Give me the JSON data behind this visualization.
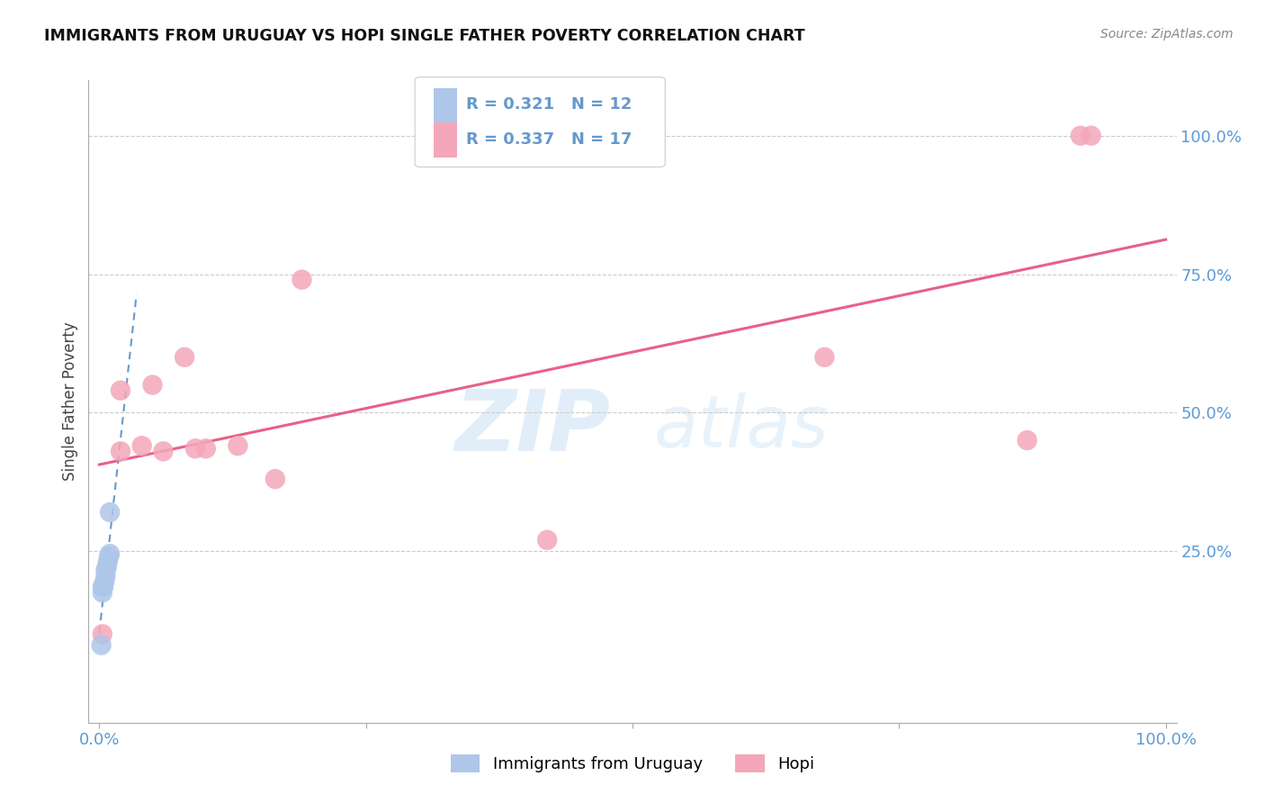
{
  "title": "IMMIGRANTS FROM URUGUAY VS HOPI SINGLE FATHER POVERTY CORRELATION CHART",
  "source": "Source: ZipAtlas.com",
  "ylabel": "Single Father Poverty",
  "legend_label1": "Immigrants from Uruguay",
  "legend_label2": "Hopi",
  "R1": 0.321,
  "N1": 12,
  "R2": 0.337,
  "N2": 17,
  "watermark_zip": "ZIP",
  "watermark_atlas": "atlas",
  "uruguay_color": "#aec6e8",
  "hopi_color": "#f4a7b9",
  "trendline1_color": "#6699cc",
  "trendline2_color": "#e8608a",
  "background_color": "#ffffff",
  "grid_color": "#cccccc",
  "ytick_color": "#5b9bd5",
  "xtick_color": "#5b9bd5",
  "ytick_labels": [
    "25.0%",
    "50.0%",
    "75.0%",
    "100.0%"
  ],
  "ytick_values": [
    0.25,
    0.5,
    0.75,
    1.0
  ],
  "xtick_labels": [
    "0.0%",
    "100.0%"
  ],
  "xlim": [
    -0.01,
    1.01
  ],
  "ylim": [
    -0.06,
    1.1
  ],
  "uruguay_x": [
    0.002,
    0.003,
    0.003,
    0.004,
    0.005,
    0.006,
    0.006,
    0.007,
    0.008,
    0.009,
    0.01,
    0.01
  ],
  "uruguay_y": [
    0.08,
    0.175,
    0.185,
    0.185,
    0.195,
    0.205,
    0.215,
    0.22,
    0.23,
    0.24,
    0.245,
    0.32
  ],
  "hopi_x": [
    0.003,
    0.02,
    0.02,
    0.04,
    0.05,
    0.06,
    0.08,
    0.09,
    0.1,
    0.13,
    0.165,
    0.19,
    0.42,
    0.68,
    0.87,
    0.92,
    0.93
  ],
  "hopi_y": [
    0.1,
    0.54,
    0.43,
    0.44,
    0.55,
    0.43,
    0.6,
    0.435,
    0.435,
    0.44,
    0.38,
    0.74,
    0.27,
    0.6,
    0.45,
    1.0,
    1.0
  ]
}
